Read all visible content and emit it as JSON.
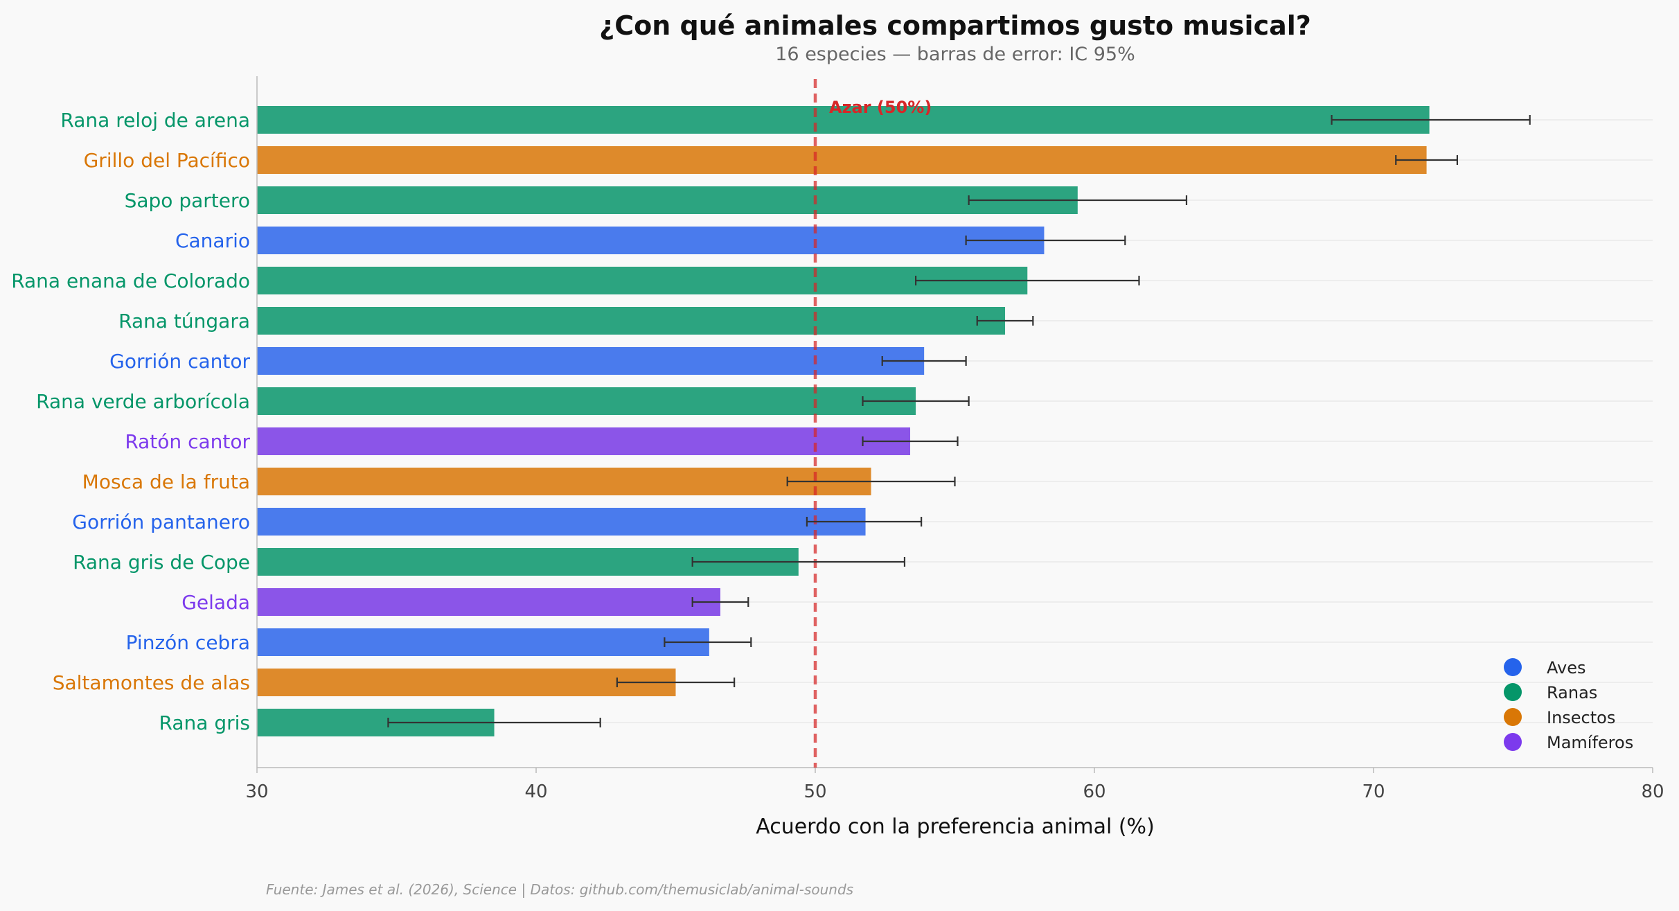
{
  "chart_data": {
    "type": "bar",
    "orientation": "horizontal",
    "title": "¿Con qué animales compartimos gusto musical?",
    "subtitle": "16 especies — barras de error: IC 95%",
    "xlabel": "Acuerdo con la preferencia animal (%)",
    "ylabel": "",
    "xlim": [
      30,
      80
    ],
    "xticks": [
      "30",
      "40",
      "50",
      "60",
      "70",
      "80"
    ],
    "grid": "horizontal",
    "legend_position": "bottom-right",
    "chance_line": {
      "value": 50,
      "label": "Azar (50%)",
      "color": "#d62728"
    },
    "groups": [
      {
        "name": "Aves",
        "color": "#2563eb"
      },
      {
        "name": "Ranas",
        "color": "#059669"
      },
      {
        "name": "Insectos",
        "color": "#d97706"
      },
      {
        "name": "Mamíferos",
        "color": "#7c3aed"
      }
    ],
    "bars": [
      {
        "species": "Rana reloj de arena",
        "group": "Ranas",
        "value": 72.0,
        "ci_low": 68.5,
        "ci_high": 75.6
      },
      {
        "species": "Grillo del Pacífico",
        "group": "Insectos",
        "value": 71.9,
        "ci_low": 70.8,
        "ci_high": 73.0
      },
      {
        "species": "Sapo partero",
        "group": "Ranas",
        "value": 59.4,
        "ci_low": 55.5,
        "ci_high": 63.3
      },
      {
        "species": "Canario",
        "group": "Aves",
        "value": 58.2,
        "ci_low": 55.4,
        "ci_high": 61.1
      },
      {
        "species": "Rana enana de Colorado",
        "group": "Ranas",
        "value": 57.6,
        "ci_low": 53.6,
        "ci_high": 61.6
      },
      {
        "species": "Rana túngara",
        "group": "Ranas",
        "value": 56.8,
        "ci_low": 55.8,
        "ci_high": 57.8
      },
      {
        "species": "Gorrión cantor",
        "group": "Aves",
        "value": 53.9,
        "ci_low": 52.4,
        "ci_high": 55.4
      },
      {
        "species": "Rana verde arborícola",
        "group": "Ranas",
        "value": 53.6,
        "ci_low": 51.7,
        "ci_high": 55.5
      },
      {
        "species": "Ratón cantor",
        "group": "Mamíferos",
        "value": 53.4,
        "ci_low": 51.7,
        "ci_high": 55.1
      },
      {
        "species": "Mosca de la fruta",
        "group": "Insectos",
        "value": 52.0,
        "ci_low": 49.0,
        "ci_high": 55.0
      },
      {
        "species": "Gorrión pantanero",
        "group": "Aves",
        "value": 51.8,
        "ci_low": 49.7,
        "ci_high": 53.8
      },
      {
        "species": "Rana gris de Cope",
        "group": "Ranas",
        "value": 49.4,
        "ci_low": 45.6,
        "ci_high": 53.2
      },
      {
        "species": "Gelada",
        "group": "Mamíferos",
        "value": 46.6,
        "ci_low": 45.6,
        "ci_high": 47.6
      },
      {
        "species": "Pinzón cebra",
        "group": "Aves",
        "value": 46.2,
        "ci_low": 44.6,
        "ci_high": 47.7
      },
      {
        "species": "Saltamontes de alas",
        "group": "Insectos",
        "value": 45.0,
        "ci_low": 42.9,
        "ci_high": 47.1
      },
      {
        "species": "Rana gris",
        "group": "Ranas",
        "value": 38.5,
        "ci_low": 34.7,
        "ci_high": 42.3
      }
    ],
    "source": "Fuente: James et al. (2026), Science | Datos: github.com/themusiclab/animal-sounds"
  },
  "colors": {
    "bar_Aves": "#4a7bed",
    "bar_Ranas": "#2ca480",
    "bar_Insectos": "#de8a2b",
    "bar_Mamíferos": "#8b55e8",
    "label_Aves": "#2563eb",
    "label_Ranas": "#059669",
    "label_Insectos": "#d97706",
    "label_Mamíferos": "#7c3aed",
    "axis": "#bbbbbb",
    "grid": "#e6e6e6",
    "errorbar": "#333333"
  }
}
